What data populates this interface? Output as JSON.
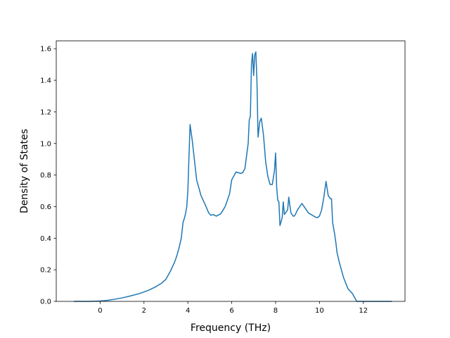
{
  "chart_data": {
    "type": "line",
    "title": "",
    "xlabel": "Frequency (THz)",
    "ylabel": "Density of States",
    "xlim": [
      -2.0,
      13.9
    ],
    "ylim": [
      0.0,
      1.65
    ],
    "grid": false,
    "line_color": "#1f77b4",
    "x_ticks": [
      0,
      2,
      4,
      6,
      8,
      10,
      12
    ],
    "x_tick_labels": [
      "0",
      "2",
      "4",
      "6",
      "8",
      "10",
      "12"
    ],
    "y_ticks": [
      0.0,
      0.2,
      0.4,
      0.6,
      0.8,
      1.0,
      1.2,
      1.4,
      1.6
    ],
    "y_tick_labels": [
      "0.0",
      "0.2",
      "0.4",
      "0.6",
      "0.8",
      "1.0",
      "1.2",
      "1.4",
      "1.6"
    ],
    "series": [
      {
        "x": [
          -1.2,
          -0.5,
          0.0,
          0.3,
          0.6,
          1.0,
          1.4,
          1.8,
          2.2,
          2.5,
          2.8,
          3.0,
          3.2,
          3.4,
          3.5,
          3.6,
          3.7,
          3.78,
          3.85,
          3.9,
          3.95,
          4.0,
          4.1,
          4.2,
          4.4,
          4.6,
          4.8,
          4.95,
          5.05,
          5.15,
          5.3,
          5.5,
          5.7,
          5.8,
          5.9,
          6.0,
          6.2,
          6.4,
          6.5,
          6.6,
          6.75,
          6.8,
          6.85,
          6.9,
          6.95,
          7.0,
          7.05,
          7.1,
          7.15,
          7.2,
          7.28,
          7.35,
          7.45,
          7.55,
          7.65,
          7.75,
          7.85,
          7.95,
          8.0,
          8.05,
          8.1,
          8.15,
          8.2,
          8.3,
          8.35,
          8.4,
          8.55,
          8.6,
          8.7,
          8.8,
          8.85,
          8.9,
          9.0,
          9.2,
          9.5,
          9.8,
          9.9,
          10.0,
          10.1,
          10.2,
          10.3,
          10.4,
          10.5,
          10.55,
          10.6,
          10.7,
          10.75,
          10.8,
          10.9,
          11.0,
          11.1,
          11.3,
          11.5,
          11.7,
          11.9,
          12.05,
          12.2,
          12.6,
          13.0,
          13.3
        ],
        "y": [
          0.0,
          0.0,
          0.002,
          0.006,
          0.012,
          0.022,
          0.035,
          0.05,
          0.07,
          0.09,
          0.115,
          0.14,
          0.19,
          0.25,
          0.29,
          0.34,
          0.4,
          0.5,
          0.53,
          0.56,
          0.6,
          0.7,
          1.12,
          1.02,
          0.77,
          0.67,
          0.61,
          0.56,
          0.545,
          0.55,
          0.54,
          0.555,
          0.6,
          0.64,
          0.68,
          0.77,
          0.82,
          0.81,
          0.815,
          0.84,
          1.0,
          1.15,
          1.17,
          1.5,
          1.57,
          1.43,
          1.56,
          1.58,
          1.4,
          1.04,
          1.14,
          1.16,
          1.05,
          0.88,
          0.79,
          0.74,
          0.74,
          0.83,
          0.94,
          0.72,
          0.64,
          0.63,
          0.48,
          0.53,
          0.63,
          0.55,
          0.58,
          0.66,
          0.56,
          0.54,
          0.54,
          0.55,
          0.58,
          0.62,
          0.56,
          0.535,
          0.53,
          0.54,
          0.58,
          0.66,
          0.76,
          0.67,
          0.65,
          0.65,
          0.5,
          0.42,
          0.37,
          0.31,
          0.25,
          0.2,
          0.15,
          0.08,
          0.05,
          0.0,
          0.0,
          0.0,
          0.0,
          0.0,
          0.0,
          0.0
        ]
      }
    ]
  }
}
